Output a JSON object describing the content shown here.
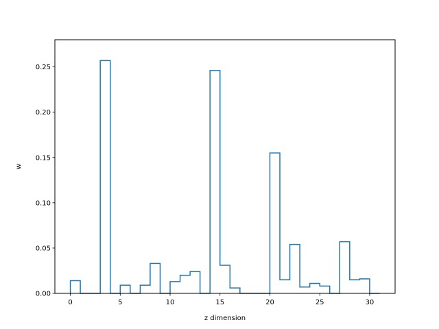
{
  "chart_data": {
    "type": "bar",
    "style": "step-histogram",
    "title": "",
    "xlabel": "z dimension",
    "ylabel": "w",
    "xlim": [
      -1.55,
      32.55
    ],
    "ylim": [
      0,
      0.28
    ],
    "xticks": [
      0,
      5,
      10,
      15,
      20,
      25,
      30
    ],
    "yticks": [
      0.0,
      0.05,
      0.1,
      0.15,
      0.2,
      0.25
    ],
    "ytick_labels": [
      "0.00",
      "0.05",
      "0.10",
      "0.15",
      "0.20",
      "0.25"
    ],
    "bin_edges": [
      0,
      1,
      2,
      3,
      4,
      5,
      6,
      7,
      8,
      9,
      10,
      11,
      12,
      13,
      14,
      15,
      16,
      17,
      18,
      19,
      20,
      21,
      22,
      23,
      24,
      25,
      26,
      27,
      28,
      29,
      30,
      31
    ],
    "values": [
      0.014,
      0.0,
      0.0,
      0.257,
      0.0,
      0.009,
      0.0,
      0.009,
      0.033,
      0.0,
      0.013,
      0.02,
      0.024,
      0.0,
      0.246,
      0.031,
      0.006,
      0.0,
      0.0,
      0.0,
      0.155,
      0.015,
      0.054,
      0.007,
      0.011,
      0.008,
      0.0,
      0.057,
      0.015,
      0.016,
      0.0
    ],
    "line_color": "#1f77b4",
    "grid": false,
    "legend": "none"
  }
}
